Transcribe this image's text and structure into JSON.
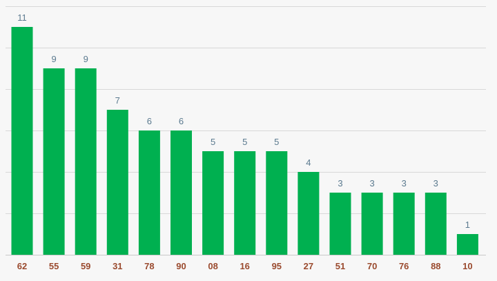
{
  "chart_data": {
    "type": "bar",
    "categories": [
      "62",
      "55",
      "59",
      "31",
      "78",
      "90",
      "08",
      "16",
      "95",
      "27",
      "51",
      "70",
      "76",
      "88",
      "10"
    ],
    "values": [
      11,
      9,
      9,
      7,
      6,
      6,
      5,
      5,
      5,
      4,
      3,
      3,
      3,
      3,
      1
    ],
    "title": "",
    "xlabel": "",
    "ylabel": "",
    "ylim": [
      0,
      12
    ],
    "grid": true,
    "legend": "none"
  },
  "colors": {
    "bar": "#00b050",
    "data_label": "#5b7a8f",
    "tick_label": "#9a4a2e"
  }
}
